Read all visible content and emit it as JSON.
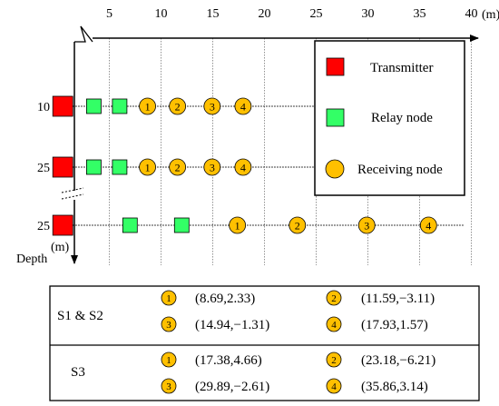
{
  "axis": {
    "x_ticks": [
      "5",
      "10",
      "15",
      "20",
      "25",
      "30",
      "35",
      "40"
    ],
    "x_unit": "(m)",
    "y_label": "Depth",
    "y_unit": "(m)"
  },
  "rows": [
    {
      "depth_label": "10",
      "transmitter_m": 0.5,
      "relays_m": [
        3.5,
        6.0
      ],
      "receivers_m": [
        8.69,
        11.59,
        14.94,
        17.93
      ]
    },
    {
      "depth_label": "25",
      "transmitter_m": 0.5,
      "relays_m": [
        3.5,
        6.0
      ],
      "receivers_m": [
        8.69,
        11.59,
        14.94,
        17.93
      ]
    },
    {
      "depth_label": "25",
      "transmitter_m": 0.5,
      "relays_m": [
        7.0,
        12.0
      ],
      "receivers_m": [
        17.38,
        23.18,
        29.89,
        35.86
      ]
    }
  ],
  "receiver_numbers": [
    "1",
    "2",
    "3",
    "4"
  ],
  "legend": {
    "items": [
      {
        "label": "Transmitter",
        "shape": "square",
        "color": "#ff0000"
      },
      {
        "label": "Relay node",
        "shape": "square",
        "color": "#33ff66"
      },
      {
        "label": "Receiving node",
        "shape": "circle",
        "color": "#ffc000"
      }
    ]
  },
  "table": {
    "groups": [
      {
        "label": "S1 & S2",
        "coords": [
          "(8.69,2.33)",
          "(11.59,−3.11)",
          "(14.94,−1.31)",
          "(17.93,1.57)"
        ]
      },
      {
        "label": "S3",
        "coords": [
          "(17.38,4.66)",
          "(23.18,−6.21)",
          "(29.89,−2.61)",
          "(35.86,3.14)"
        ]
      }
    ]
  },
  "colors": {
    "transmitter": "#ff0000",
    "relay": "#33ff66",
    "receiver": "#ffc000",
    "grid": "#666666",
    "line": "#000000"
  }
}
